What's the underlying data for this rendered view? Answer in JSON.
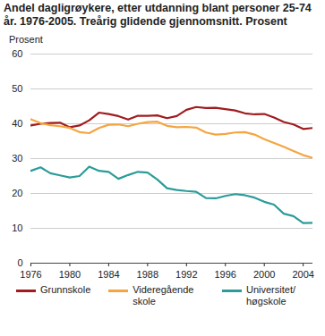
{
  "chart_data": {
    "type": "line",
    "title": "Andel dagligrøykere, etter utdanning blant personer 25-74 år. 1976-2005. Treårig glidende gjennomsnitt. Prosent",
    "y_label": "Prosent",
    "x": [
      1976,
      1977,
      1978,
      1979,
      1980,
      1981,
      1982,
      1983,
      1984,
      1985,
      1986,
      1987,
      1988,
      1989,
      1990,
      1991,
      1992,
      1993,
      1994,
      1995,
      1996,
      1997,
      1998,
      1999,
      2000,
      2001,
      2002,
      2003,
      2004,
      2005
    ],
    "series": [
      {
        "name": "Grunnskole",
        "color": "#a01c1f",
        "values": [
          39.5,
          40,
          40.2,
          40.3,
          39,
          39.5,
          41,
          43.2,
          42.8,
          42.2,
          41.2,
          42.3,
          42.3,
          42.4,
          41.6,
          42.2,
          44,
          44.8,
          44.5,
          44.6,
          44.2,
          43.8,
          43,
          42.7,
          42.8,
          41.8,
          40.5,
          39.8,
          38.5,
          38.8
        ]
      },
      {
        "name": "Videregående skole",
        "color": "#f5a540",
        "values": [
          41.3,
          40.2,
          39.6,
          39.3,
          38.8,
          37.6,
          37.3,
          38.8,
          39.7,
          39.8,
          39.3,
          40,
          40.5,
          40.6,
          39.4,
          39,
          39.1,
          38.9,
          37.5,
          36.9,
          37.1,
          37.5,
          37.6,
          36.9,
          35.6,
          34.5,
          33.4,
          32.2,
          31,
          30.2
        ]
      },
      {
        "name": "Universitet/ høgskole",
        "color": "#2b9c99",
        "values": [
          26.5,
          27.5,
          25.8,
          25.2,
          24.6,
          25,
          27.7,
          26.5,
          26.2,
          24.2,
          25.3,
          26.2,
          26,
          24,
          21.5,
          21,
          20.7,
          20.5,
          18.7,
          18.6,
          19.3,
          19.8,
          19.5,
          18.8,
          17.6,
          16.8,
          14.2,
          13.5,
          11.5,
          11.6
        ]
      }
    ],
    "xlim": [
      1976,
      2005
    ],
    "xticks": [
      1976,
      1980,
      1984,
      1988,
      1992,
      1996,
      2000,
      2004
    ],
    "ylim": [
      0,
      60
    ],
    "yticks": [
      0,
      10,
      20,
      30,
      40,
      50,
      60
    ],
    "grid": true,
    "legend": "bottom"
  }
}
